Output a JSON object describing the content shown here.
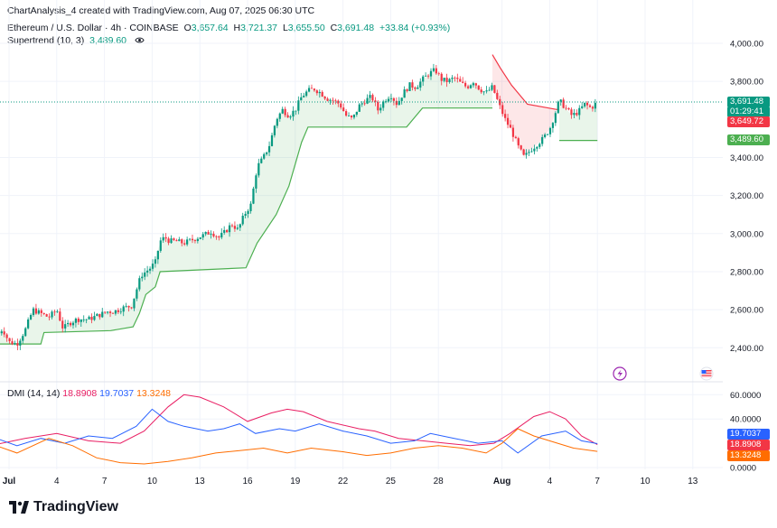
{
  "header": {
    "caption": "ChartAnalysis_4 created with TradingView.com, Aug 07, 2025 06:30 UTC",
    "symbol": "Ethereum / U.S. Dollar · 4h · COINBASE",
    "open_label": "O",
    "open": "3,657.64",
    "high_label": "H",
    "high": "3,721.37",
    "low_label": "L",
    "low": "3,655.50",
    "close_label": "C",
    "close": "3,691.48",
    "change": "+33.84 (+0.93%)",
    "indicator_name": "Supertrend (10, 3)",
    "indicator_value": "3,489.60"
  },
  "price_axis": {
    "ticks": [
      "4,000.00",
      "3,800.00",
      "3,400.00",
      "3,200.00",
      "3,000.00",
      "2,800.00",
      "2,600.00",
      "2,400.00"
    ],
    "tick_values": [
      4000,
      3800,
      3400,
      3200,
      3000,
      2800,
      2600,
      2400
    ],
    "last_price": "3,691.48",
    "countdown": "01:29:41",
    "supertrend_upper_label": "3,649.72",
    "supertrend_lower_label": "3,489.60"
  },
  "dmi": {
    "name": "DMI (14, 14)",
    "plus_di": "18.8908",
    "minus_di": "19.7037",
    "adx": "13.3248",
    "ticks": [
      "60.0000",
      "40.0000",
      "0.0000"
    ],
    "tick_values": [
      60,
      40,
      0
    ]
  },
  "time_axis": {
    "labels": [
      "Jul",
      "4",
      "7",
      "10",
      "13",
      "16",
      "19",
      "22",
      "25",
      "28",
      "Aug",
      "4",
      "7",
      "10",
      "13"
    ],
    "label_days": [
      1,
      4,
      7,
      10,
      13,
      16,
      19,
      22,
      25,
      28,
      32,
      35,
      38,
      41,
      44
    ]
  },
  "brand": "TradingView",
  "colors": {
    "up": "#089981",
    "down": "#f23645",
    "supertrend_up": "#4caf50",
    "supertrend_down": "#f23645",
    "plus_di": "#e91e63",
    "minus_di": "#2962ff",
    "adx": "#ff6d00",
    "last_price_badge": "#089981",
    "supertrend_upper_badge": "#f23645",
    "supertrend_lower_badge": "#4caf50"
  },
  "chart_data": [
    {
      "type": "candlestick",
      "title": "Ethereum / U.S. Dollar · 4h · COINBASE",
      "x_unit": "day of Jul–Aug 2025 (Aug 1 = 32)",
      "ylim": [
        2300,
        4050
      ],
      "grid": true,
      "close_path": [
        [
          0.2,
          2460
        ],
        [
          0.6,
          2500
        ],
        [
          1.0,
          2430
        ],
        [
          1.5,
          2420
        ],
        [
          2.0,
          2490
        ],
        [
          2.5,
          2600
        ],
        [
          3.0,
          2580
        ],
        [
          3.5,
          2560
        ],
        [
          4.0,
          2600
        ],
        [
          4.4,
          2500
        ],
        [
          4.8,
          2530
        ],
        [
          5.3,
          2550
        ],
        [
          6.0,
          2550
        ],
        [
          6.6,
          2570
        ],
        [
          7.2,
          2590
        ],
        [
          7.6,
          2590
        ],
        [
          8.2,
          2610
        ],
        [
          8.7,
          2620
        ],
        [
          9.0,
          2700
        ],
        [
          9.3,
          2780
        ],
        [
          9.6,
          2800
        ],
        [
          9.9,
          2820
        ],
        [
          10.2,
          2850
        ],
        [
          10.5,
          2960
        ],
        [
          10.8,
          2980
        ],
        [
          11.1,
          2960
        ],
        [
          11.5,
          2960
        ],
        [
          12.0,
          2950
        ],
        [
          12.6,
          2970
        ],
        [
          13.2,
          2990
        ],
        [
          13.7,
          3010
        ],
        [
          14.2,
          2980
        ],
        [
          14.6,
          3010
        ],
        [
          15.0,
          3050
        ],
        [
          15.4,
          3020
        ],
        [
          15.8,
          3100
        ],
        [
          16.2,
          3150
        ],
        [
          16.6,
          3350
        ],
        [
          17.0,
          3400
        ],
        [
          17.4,
          3470
        ],
        [
          17.8,
          3600
        ],
        [
          18.2,
          3650
        ],
        [
          18.6,
          3620
        ],
        [
          19.0,
          3650
        ],
        [
          19.4,
          3720
        ],
        [
          19.8,
          3750
        ],
        [
          20.2,
          3760
        ],
        [
          20.6,
          3740
        ],
        [
          21.0,
          3710
        ],
        [
          21.4,
          3700
        ],
        [
          21.8,
          3680
        ],
        [
          22.2,
          3620
        ],
        [
          22.6,
          3600
        ],
        [
          23.0,
          3670
        ],
        [
          23.4,
          3700
        ],
        [
          23.8,
          3720
        ],
        [
          24.2,
          3650
        ],
        [
          24.6,
          3700
        ],
        [
          25.0,
          3730
        ],
        [
          25.4,
          3680
        ],
        [
          25.8,
          3740
        ],
        [
          26.2,
          3780
        ],
        [
          26.6,
          3770
        ],
        [
          27.0,
          3810
        ],
        [
          27.4,
          3840
        ],
        [
          27.8,
          3860
        ],
        [
          28.2,
          3810
        ],
        [
          28.6,
          3800
        ],
        [
          29.0,
          3820
        ],
        [
          29.4,
          3790
        ],
        [
          29.8,
          3770
        ],
        [
          30.2,
          3800
        ],
        [
          30.6,
          3760
        ],
        [
          31.0,
          3740
        ],
        [
          31.4,
          3770
        ],
        [
          31.8,
          3680
        ],
        [
          32.2,
          3600
        ],
        [
          32.6,
          3540
        ],
        [
          33.0,
          3460
        ],
        [
          33.4,
          3400
        ],
        [
          33.8,
          3440
        ],
        [
          34.2,
          3470
        ],
        [
          34.6,
          3500
        ],
        [
          35.0,
          3550
        ],
        [
          35.3,
          3620
        ],
        [
          35.6,
          3700
        ],
        [
          36.0,
          3660
        ],
        [
          36.4,
          3620
        ],
        [
          36.8,
          3640
        ],
        [
          37.2,
          3680
        ],
        [
          37.6,
          3660
        ],
        [
          38.0,
          3691.48
        ]
      ],
      "supertrend_up_1": [
        [
          0.2,
          2420
        ],
        [
          3.0,
          2420
        ],
        [
          3.2,
          2480
        ],
        [
          7.4,
          2490
        ],
        [
          8.8,
          2510
        ],
        [
          9.2,
          2580
        ],
        [
          9.6,
          2680
        ],
        [
          10.2,
          2720
        ],
        [
          10.5,
          2800
        ],
        [
          15.9,
          2820
        ],
        [
          16.6,
          2950
        ],
        [
          17.8,
          3100
        ],
        [
          18.6,
          3250
        ],
        [
          19.4,
          3480
        ],
        [
          19.8,
          3560
        ],
        [
          24.5,
          3560
        ],
        [
          26.0,
          3560
        ],
        [
          27.0,
          3660
        ],
        [
          31.4,
          3660
        ]
      ],
      "supertrend_down": [
        [
          31.4,
          3940
        ],
        [
          31.9,
          3870
        ],
        [
          32.6,
          3780
        ],
        [
          33.6,
          3680
        ],
        [
          35.6,
          3650
        ]
      ],
      "supertrend_up_2": [
        [
          35.6,
          3489.6
        ],
        [
          38.0,
          3489.6
        ]
      ],
      "supertrend_value": 3489.6,
      "last_price": 3691.48
    },
    {
      "type": "line",
      "title": "DMI (14, 14)",
      "ylim": [
        0,
        65
      ],
      "series": [
        {
          "name": "+DI",
          "color": "#e91e63",
          "values_xy": [
            [
              0.2,
              19
            ],
            [
              2.0,
              24
            ],
            [
              4.0,
              28
            ],
            [
              6.0,
              22
            ],
            [
              8.0,
              20
            ],
            [
              9.5,
              30
            ],
            [
              11.0,
              50
            ],
            [
              12.0,
              60
            ],
            [
              13.0,
              58
            ],
            [
              14.5,
              50
            ],
            [
              16.0,
              38
            ],
            [
              17.5,
              45
            ],
            [
              18.5,
              48
            ],
            [
              19.5,
              46
            ],
            [
              21.0,
              38
            ],
            [
              23.0,
              32
            ],
            [
              24.0,
              30
            ],
            [
              25.5,
              24
            ],
            [
              27.0,
              22
            ],
            [
              28.5,
              20
            ],
            [
              30.0,
              18
            ],
            [
              31.5,
              20
            ],
            [
              32.5,
              28
            ],
            [
              34.0,
              42
            ],
            [
              35.0,
              46
            ],
            [
              36.0,
              40
            ],
            [
              37.0,
              26
            ],
            [
              38.0,
              18.8908
            ]
          ]
        },
        {
          "name": "-DI",
          "color": "#2962ff",
          "values_xy": [
            [
              0.2,
              24
            ],
            [
              1.5,
              18
            ],
            [
              3.0,
              24
            ],
            [
              4.5,
              20
            ],
            [
              6.0,
              26
            ],
            [
              7.5,
              24
            ],
            [
              9.0,
              34
            ],
            [
              10.0,
              48
            ],
            [
              11.0,
              38
            ],
            [
              12.0,
              34
            ],
            [
              13.5,
              30
            ],
            [
              14.5,
              32
            ],
            [
              15.5,
              36
            ],
            [
              16.5,
              28
            ],
            [
              18.0,
              32
            ],
            [
              19.0,
              30
            ],
            [
              20.5,
              36
            ],
            [
              22.0,
              30
            ],
            [
              23.5,
              26
            ],
            [
              25.0,
              20
            ],
            [
              26.5,
              22
            ],
            [
              27.5,
              28
            ],
            [
              29.0,
              24
            ],
            [
              30.5,
              20
            ],
            [
              32.0,
              22
            ],
            [
              33.0,
              12
            ],
            [
              34.5,
              26
            ],
            [
              36.0,
              30
            ],
            [
              37.0,
              22
            ],
            [
              38.0,
              19.7037
            ]
          ]
        },
        {
          "name": "ADX",
          "color": "#ff6d00",
          "values_xy": [
            [
              0.2,
              18
            ],
            [
              1.5,
              12
            ],
            [
              3.5,
              24
            ],
            [
              5.0,
              18
            ],
            [
              6.5,
              8
            ],
            [
              8.0,
              4
            ],
            [
              9.5,
              3
            ],
            [
              11.0,
              5
            ],
            [
              12.5,
              8
            ],
            [
              14.0,
              12
            ],
            [
              15.5,
              14
            ],
            [
              17.0,
              16
            ],
            [
              18.5,
              12
            ],
            [
              20.0,
              16
            ],
            [
              22.0,
              13
            ],
            [
              23.5,
              10
            ],
            [
              25.0,
              12
            ],
            [
              26.5,
              16
            ],
            [
              28.0,
              18
            ],
            [
              29.5,
              16
            ],
            [
              31.0,
              12
            ],
            [
              32.0,
              20
            ],
            [
              33.0,
              32
            ],
            [
              34.0,
              26
            ],
            [
              35.5,
              20
            ],
            [
              36.5,
              16
            ],
            [
              38.0,
              13.3248
            ]
          ]
        }
      ]
    }
  ]
}
